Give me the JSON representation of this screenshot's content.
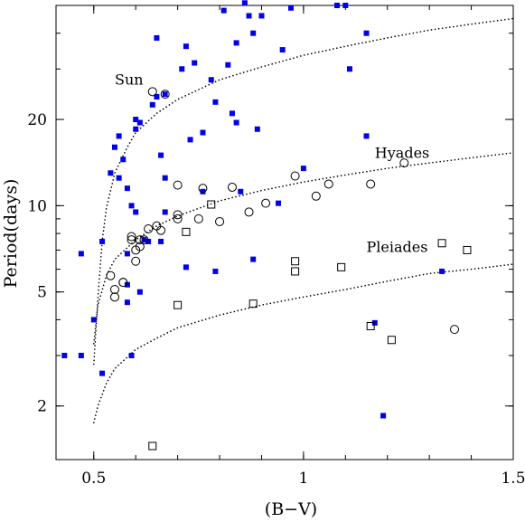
{
  "chart_data": {
    "type": "scatter",
    "xlabel": "(B−V)",
    "ylabel": "Period(days)",
    "xlim": [
      0.41,
      1.5
    ],
    "ylim": [
      1.3,
      50
    ],
    "yscale": "log",
    "xticks": [
      0.5,
      1,
      1.5
    ],
    "xtick_labels": [
      "0.5",
      "1",
      "1.5"
    ],
    "yticks": [
      2,
      5,
      10,
      20
    ],
    "ytick_labels": [
      "2",
      "5",
      "10",
      "20"
    ],
    "colors": {
      "filled_square": "#0000ee",
      "axes": "#000000"
    },
    "curves": [
      {
        "label": "Sun",
        "points": [
          [
            0.5,
            2.8
          ],
          [
            0.51,
            4.8
          ],
          [
            0.52,
            7.5
          ],
          [
            0.53,
            9.8
          ],
          [
            0.55,
            13
          ],
          [
            0.58,
            16
          ],
          [
            0.6,
            18
          ],
          [
            0.65,
            21
          ],
          [
            0.7,
            23.5
          ],
          [
            0.8,
            27.5
          ],
          [
            0.9,
            30.5
          ],
          [
            1.0,
            33.5
          ],
          [
            1.1,
            36
          ],
          [
            1.2,
            38.5
          ],
          [
            1.3,
            41
          ],
          [
            1.4,
            43
          ],
          [
            1.5,
            45
          ]
        ]
      },
      {
        "label": "Hyades",
        "points": [
          [
            0.5,
            3.3
          ],
          [
            0.51,
            4.5
          ],
          [
            0.53,
            5.7
          ],
          [
            0.55,
            6.5
          ],
          [
            0.6,
            7.6
          ],
          [
            0.65,
            8.5
          ],
          [
            0.7,
            9.2
          ],
          [
            0.8,
            10.4
          ],
          [
            0.9,
            11.3
          ],
          [
            1.0,
            12.1
          ],
          [
            1.1,
            12.8
          ],
          [
            1.2,
            13.5
          ],
          [
            1.3,
            14.1
          ],
          [
            1.4,
            14.7
          ],
          [
            1.5,
            15.3
          ]
        ]
      },
      {
        "label": "Pleiades",
        "points": [
          [
            0.5,
            1.75
          ],
          [
            0.51,
            2.0
          ],
          [
            0.53,
            2.4
          ],
          [
            0.55,
            2.7
          ],
          [
            0.6,
            3.15
          ],
          [
            0.65,
            3.45
          ],
          [
            0.7,
            3.75
          ],
          [
            0.8,
            4.15
          ],
          [
            0.9,
            4.5
          ],
          [
            1.0,
            4.8
          ],
          [
            1.1,
            5.1
          ],
          [
            1.2,
            5.45
          ],
          [
            1.3,
            5.8
          ],
          [
            1.4,
            6.0
          ],
          [
            1.5,
            6.25
          ]
        ]
      }
    ],
    "series": [
      {
        "marker": "filled-square",
        "points": [
          [
            0.43,
            3.0
          ],
          [
            0.47,
            3.0
          ],
          [
            0.47,
            6.8
          ],
          [
            0.5,
            4.0
          ],
          [
            0.52,
            2.6
          ],
          [
            0.52,
            7.5
          ],
          [
            0.54,
            13
          ],
          [
            0.55,
            16
          ],
          [
            0.56,
            12.5
          ],
          [
            0.56,
            17.5
          ],
          [
            0.57,
            14.5
          ],
          [
            0.58,
            11.5
          ],
          [
            0.58,
            6.8
          ],
          [
            0.58,
            5.3
          ],
          [
            0.58,
            4.6
          ],
          [
            0.59,
            3.0
          ],
          [
            0.59,
            10
          ],
          [
            0.6,
            18.5
          ],
          [
            0.6,
            20
          ],
          [
            0.6,
            9.5
          ],
          [
            0.61,
            5.0
          ],
          [
            0.61,
            19.5
          ],
          [
            0.62,
            7.6
          ],
          [
            0.63,
            7.5
          ],
          [
            0.64,
            22.5
          ],
          [
            0.65,
            24
          ],
          [
            0.65,
            38.5
          ],
          [
            0.66,
            7.5
          ],
          [
            0.66,
            15
          ],
          [
            0.67,
            24.5
          ],
          [
            0.67,
            12.5
          ],
          [
            0.67,
            9.5
          ],
          [
            0.71,
            30
          ],
          [
            0.72,
            36
          ],
          [
            0.72,
            6.1
          ],
          [
            0.73,
            17
          ],
          [
            0.74,
            31.5
          ],
          [
            0.76,
            18
          ],
          [
            0.76,
            11.2
          ],
          [
            0.78,
            27.5
          ],
          [
            0.79,
            23
          ],
          [
            0.79,
            5.9
          ],
          [
            0.81,
            48
          ],
          [
            0.82,
            31
          ],
          [
            0.83,
            21
          ],
          [
            0.84,
            19.5
          ],
          [
            0.84,
            37
          ],
          [
            0.85,
            11.2
          ],
          [
            0.86,
            51
          ],
          [
            0.87,
            46
          ],
          [
            0.88,
            6.5
          ],
          [
            0.88,
            40
          ],
          [
            0.89,
            18.5
          ],
          [
            0.9,
            46
          ],
          [
            0.94,
            10.2
          ],
          [
            0.95,
            35
          ],
          [
            0.97,
            49
          ],
          [
            1.0,
            13.5
          ],
          [
            1.08,
            50
          ],
          [
            1.1,
            50
          ],
          [
            1.11,
            30
          ],
          [
            1.15,
            17.5
          ],
          [
            1.15,
            40
          ],
          [
            1.17,
            3.9
          ],
          [
            1.19,
            1.85
          ],
          [
            1.33,
            5.9
          ]
        ]
      },
      {
        "marker": "open-circle",
        "points": [
          [
            0.54,
            5.7
          ],
          [
            0.55,
            5.1
          ],
          [
            0.55,
            4.8
          ],
          [
            0.57,
            5.4
          ],
          [
            0.57,
            5.4
          ],
          [
            0.59,
            7.8
          ],
          [
            0.59,
            7.6
          ],
          [
            0.6,
            7.0
          ],
          [
            0.6,
            6.4
          ],
          [
            0.61,
            7.6
          ],
          [
            0.61,
            7.2
          ],
          [
            0.62,
            7.6
          ],
          [
            0.63,
            8.3
          ],
          [
            0.64,
            25
          ],
          [
            0.65,
            8.5
          ],
          [
            0.66,
            8.2
          ],
          [
            0.67,
            24.5
          ],
          [
            0.7,
            11.8
          ],
          [
            0.7,
            9.3
          ],
          [
            0.7,
            9.0
          ],
          [
            0.75,
            9.0
          ],
          [
            0.76,
            11.5
          ],
          [
            0.8,
            8.8
          ],
          [
            0.83,
            11.6
          ],
          [
            0.87,
            9.5
          ],
          [
            0.91,
            10.2
          ],
          [
            0.98,
            12.7
          ],
          [
            1.03,
            10.8
          ],
          [
            1.06,
            11.9
          ],
          [
            1.16,
            11.9
          ],
          [
            1.24,
            14.1
          ],
          [
            1.36,
            3.7
          ]
        ]
      },
      {
        "marker": "open-square",
        "points": [
          [
            0.64,
            1.45
          ],
          [
            0.7,
            4.5
          ],
          [
            0.72,
            8.1
          ],
          [
            0.78,
            10.1
          ],
          [
            0.88,
            4.55
          ],
          [
            0.98,
            6.4
          ],
          [
            0.98,
            5.9
          ],
          [
            1.09,
            6.1
          ],
          [
            1.16,
            3.8
          ],
          [
            1.21,
            3.4
          ],
          [
            1.33,
            7.4
          ],
          [
            1.39,
            7.0
          ]
        ]
      }
    ]
  }
}
